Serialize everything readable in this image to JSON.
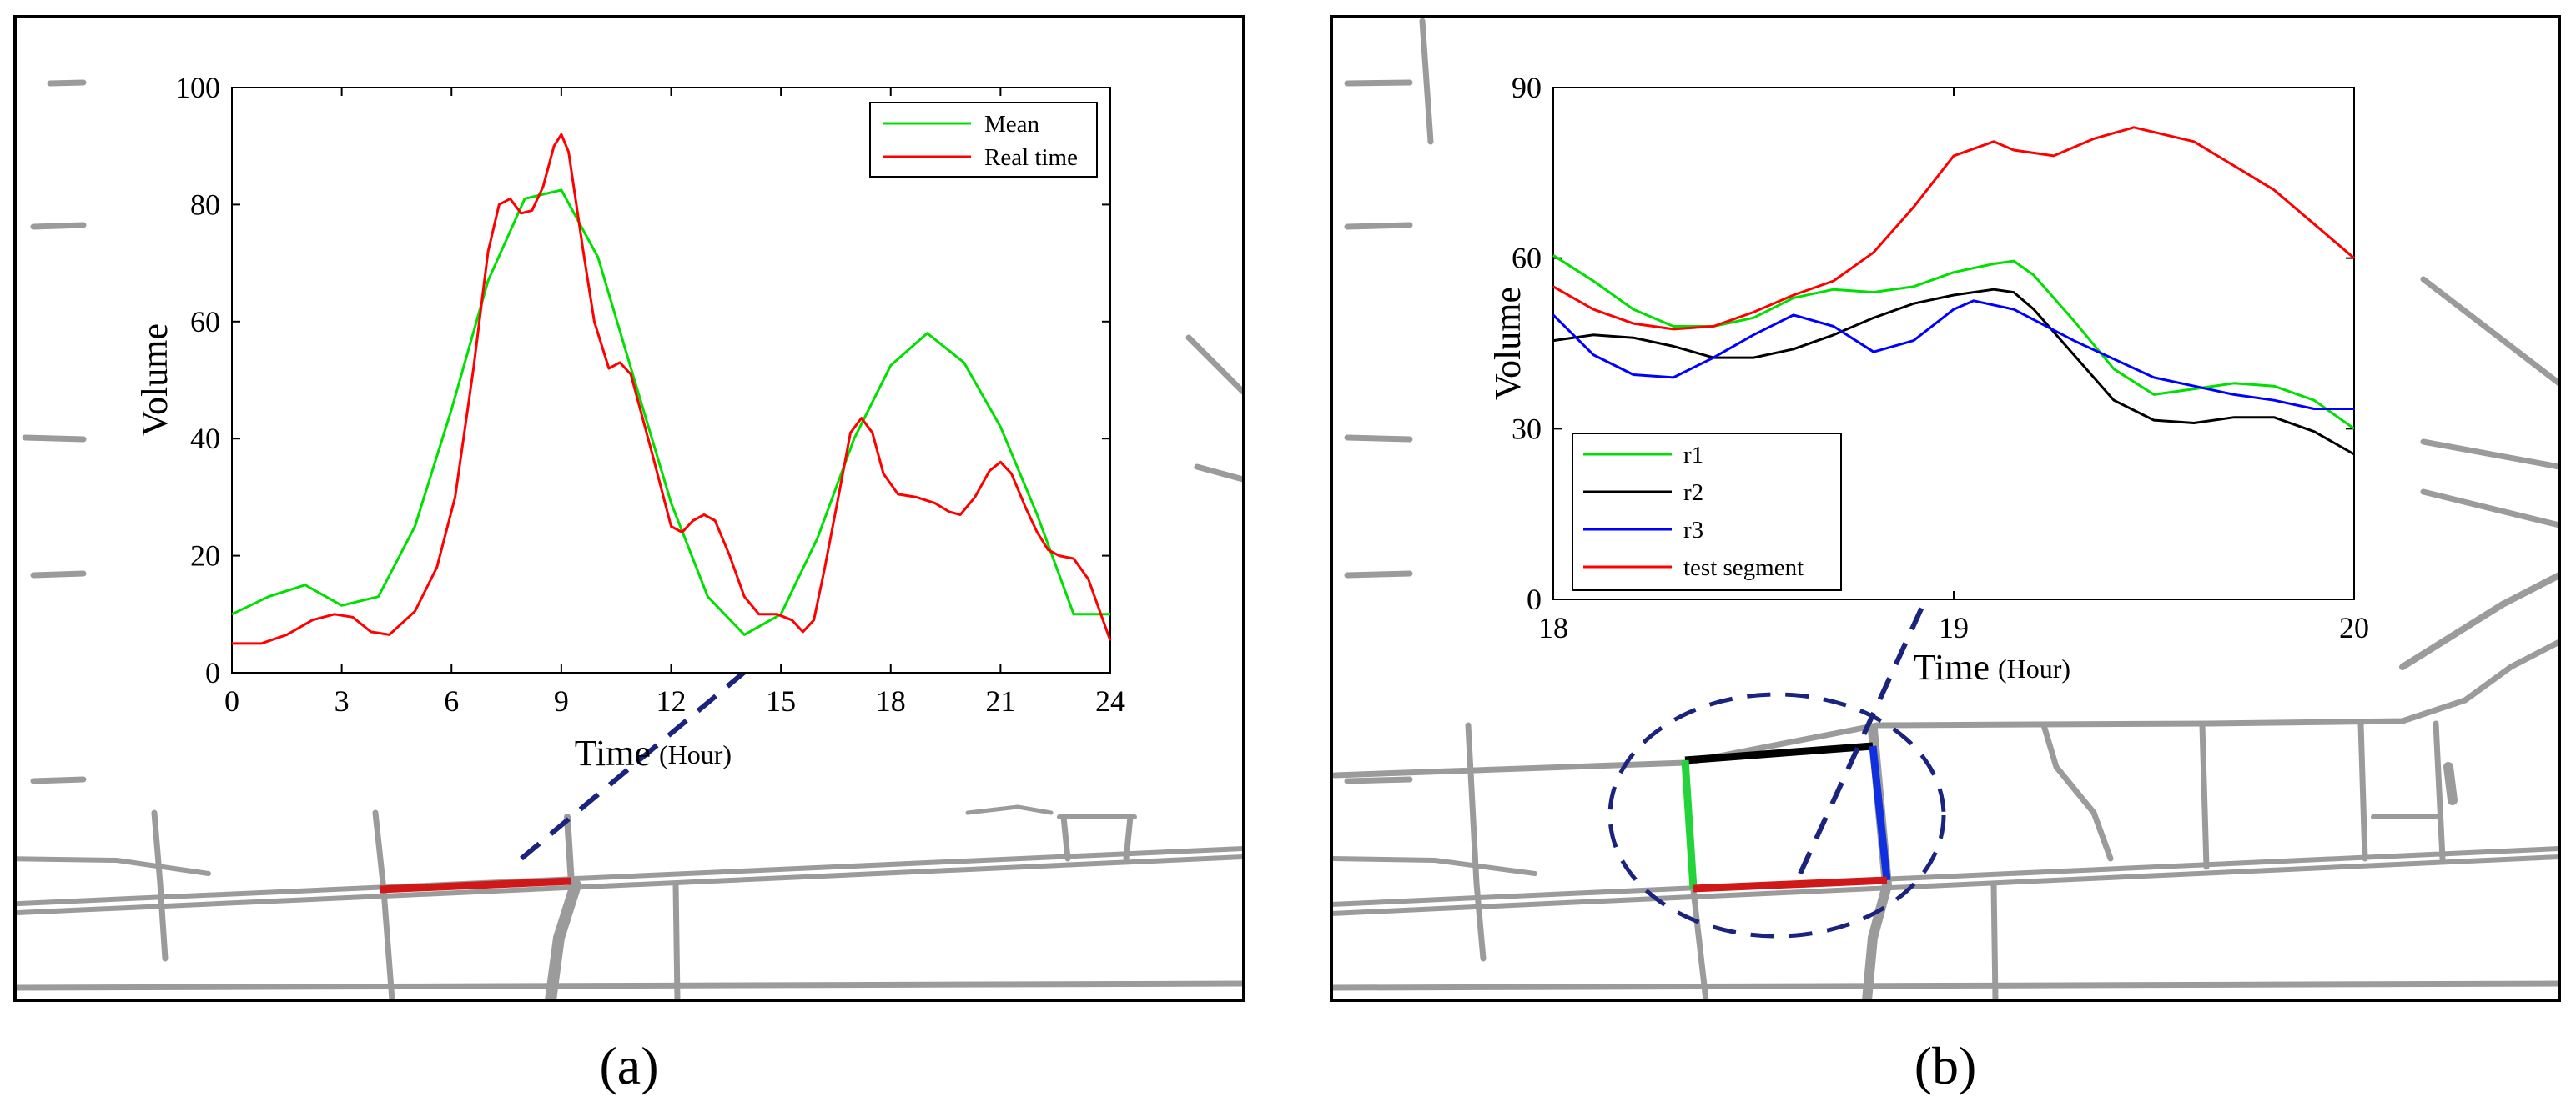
{
  "panel_labels": [
    "(a)",
    "(b)"
  ],
  "colors": {
    "mean": "#00e000",
    "real_time": "#ff0000",
    "r1": "#00e000",
    "r2": "#000000",
    "r3": "#0000ff",
    "test_segment": "#ff0000",
    "road": "#9b9b9b",
    "pointer": "#1a237e"
  },
  "chart_data": [
    {
      "type": "line",
      "panel": "(a)",
      "xlabel": "Time",
      "xunit": "(Hour)",
      "ylabel": "Volume",
      "xlim": [
        0,
        24
      ],
      "ylim": [
        0,
        100
      ],
      "xticks": [
        0,
        3,
        6,
        9,
        12,
        15,
        18,
        21,
        24
      ],
      "yticks": [
        0,
        20,
        40,
        60,
        80,
        100
      ],
      "legend_position": "top-right",
      "series": [
        {
          "name": "Mean",
          "color": "#00e000",
          "points": [
            [
              0,
              10
            ],
            [
              1,
              13
            ],
            [
              2,
              15
            ],
            [
              3,
              11.5
            ],
            [
              4,
              13
            ],
            [
              5,
              25
            ],
            [
              6,
              45
            ],
            [
              7,
              67
            ],
            [
              8,
              81
            ],
            [
              9,
              82.5
            ],
            [
              10,
              71
            ],
            [
              11,
              50
            ],
            [
              12,
              29
            ],
            [
              13,
              13
            ],
            [
              14,
              6.5
            ],
            [
              15,
              10
            ],
            [
              16,
              23
            ],
            [
              17,
              40
            ],
            [
              18,
              52.5
            ],
            [
              19,
              58
            ],
            [
              20,
              53
            ],
            [
              21,
              42
            ],
            [
              22,
              27
            ],
            [
              23,
              10
            ],
            [
              24,
              10
            ]
          ]
        },
        {
          "name": "Real time",
          "color": "#ff0000",
          "points": [
            [
              0,
              5
            ],
            [
              0.8,
              5
            ],
            [
              1.5,
              6.5
            ],
            [
              2.2,
              9
            ],
            [
              2.8,
              10
            ],
            [
              3.3,
              9.5
            ],
            [
              3.8,
              7
            ],
            [
              4.3,
              6.5
            ],
            [
              5,
              10.5
            ],
            [
              5.6,
              18
            ],
            [
              6.1,
              30
            ],
            [
              6.6,
              52
            ],
            [
              7,
              72
            ],
            [
              7.3,
              80
            ],
            [
              7.6,
              81
            ],
            [
              7.9,
              78.5
            ],
            [
              8.2,
              79
            ],
            [
              8.5,
              83
            ],
            [
              8.8,
              90
            ],
            [
              9,
              92
            ],
            [
              9.2,
              89
            ],
            [
              9.6,
              72
            ],
            [
              9.9,
              60
            ],
            [
              10.3,
              52
            ],
            [
              10.6,
              53
            ],
            [
              10.9,
              51
            ],
            [
              11.5,
              37
            ],
            [
              12,
              25
            ],
            [
              12.3,
              24
            ],
            [
              12.6,
              26
            ],
            [
              12.9,
              27
            ],
            [
              13.2,
              26
            ],
            [
              13.6,
              20
            ],
            [
              14,
              13
            ],
            [
              14.4,
              10
            ],
            [
              14.9,
              10
            ],
            [
              15.3,
              9
            ],
            [
              15.6,
              7
            ],
            [
              15.9,
              9
            ],
            [
              16.2,
              18
            ],
            [
              16.6,
              31
            ],
            [
              16.9,
              41
            ],
            [
              17.2,
              43.5
            ],
            [
              17.5,
              41
            ],
            [
              17.8,
              34
            ],
            [
              18.2,
              30.5
            ],
            [
              18.7,
              30
            ],
            [
              19.2,
              29
            ],
            [
              19.6,
              27.5
            ],
            [
              19.9,
              27
            ],
            [
              20.3,
              30
            ],
            [
              20.7,
              34.5
            ],
            [
              21,
              36
            ],
            [
              21.3,
              34
            ],
            [
              21.7,
              28
            ],
            [
              22,
              24
            ],
            [
              22.3,
              21
            ],
            [
              22.6,
              20
            ],
            [
              23,
              19.5
            ],
            [
              23.4,
              16
            ],
            [
              23.8,
              9
            ],
            [
              24,
              5.5
            ]
          ]
        }
      ]
    },
    {
      "type": "line",
      "panel": "(b)",
      "xlabel": "Time",
      "xunit": "(Hour)",
      "ylabel": "Volume",
      "xlim": [
        18,
        20
      ],
      "ylim": [
        0,
        90
      ],
      "xticks": [
        18,
        19,
        20
      ],
      "yticks": [
        0,
        30,
        60,
        90
      ],
      "legend_position": "bottom-left",
      "series": [
        {
          "name": "r1",
          "color": "#00e000",
          "points": [
            [
              18,
              60.5
            ],
            [
              18.1,
              56
            ],
            [
              18.2,
              51
            ],
            [
              18.3,
              48
            ],
            [
              18.4,
              48
            ],
            [
              18.5,
              49.5
            ],
            [
              18.6,
              53
            ],
            [
              18.7,
              54.5
            ],
            [
              18.8,
              54
            ],
            [
              18.9,
              55
            ],
            [
              19,
              57.5
            ],
            [
              19.1,
              59
            ],
            [
              19.15,
              59.5
            ],
            [
              19.2,
              57
            ],
            [
              19.3,
              49
            ],
            [
              19.4,
              40.5
            ],
            [
              19.5,
              36
            ],
            [
              19.6,
              37
            ],
            [
              19.7,
              38
            ],
            [
              19.8,
              37.5
            ],
            [
              19.9,
              35
            ],
            [
              20,
              30
            ]
          ]
        },
        {
          "name": "r2",
          "color": "#000000",
          "points": [
            [
              18,
              45.5
            ],
            [
              18.1,
              46.5
            ],
            [
              18.2,
              46
            ],
            [
              18.3,
              44.5
            ],
            [
              18.4,
              42.5
            ],
            [
              18.5,
              42.5
            ],
            [
              18.6,
              44
            ],
            [
              18.7,
              46.5
            ],
            [
              18.8,
              49.5
            ],
            [
              18.9,
              52
            ],
            [
              19,
              53.5
            ],
            [
              19.1,
              54.5
            ],
            [
              19.15,
              54
            ],
            [
              19.2,
              51
            ],
            [
              19.3,
              43
            ],
            [
              19.4,
              35
            ],
            [
              19.5,
              31.5
            ],
            [
              19.6,
              31
            ],
            [
              19.7,
              32
            ],
            [
              19.8,
              32
            ],
            [
              19.9,
              29.5
            ],
            [
              20,
              25.5
            ]
          ]
        },
        {
          "name": "r3",
          "color": "#0000ff",
          "points": [
            [
              18,
              50
            ],
            [
              18.1,
              43
            ],
            [
              18.2,
              39.5
            ],
            [
              18.3,
              39
            ],
            [
              18.4,
              42.5
            ],
            [
              18.5,
              46.5
            ],
            [
              18.6,
              50
            ],
            [
              18.7,
              48
            ],
            [
              18.8,
              43.5
            ],
            [
              18.9,
              45.5
            ],
            [
              19,
              51
            ],
            [
              19.05,
              52.5
            ],
            [
              19.15,
              51
            ],
            [
              19.3,
              45.5
            ],
            [
              19.5,
              39
            ],
            [
              19.7,
              36
            ],
            [
              19.8,
              35
            ],
            [
              19.9,
              33.5
            ],
            [
              20,
              33.5
            ]
          ]
        },
        {
          "name": "test segment",
          "color": "#ff0000",
          "points": [
            [
              18,
              55
            ],
            [
              18.1,
              51
            ],
            [
              18.2,
              48.5
            ],
            [
              18.3,
              47.5
            ],
            [
              18.4,
              48
            ],
            [
              18.5,
              50.5
            ],
            [
              18.6,
              53.5
            ],
            [
              18.7,
              56
            ],
            [
              18.8,
              61
            ],
            [
              18.9,
              69
            ],
            [
              19,
              78
            ],
            [
              19.1,
              80.5
            ],
            [
              19.15,
              79
            ],
            [
              19.25,
              78
            ],
            [
              19.35,
              81
            ],
            [
              19.45,
              83
            ],
            [
              19.6,
              80.5
            ],
            [
              19.8,
              72
            ],
            [
              19.9,
              66
            ],
            [
              20,
              60
            ]
          ]
        }
      ]
    }
  ]
}
